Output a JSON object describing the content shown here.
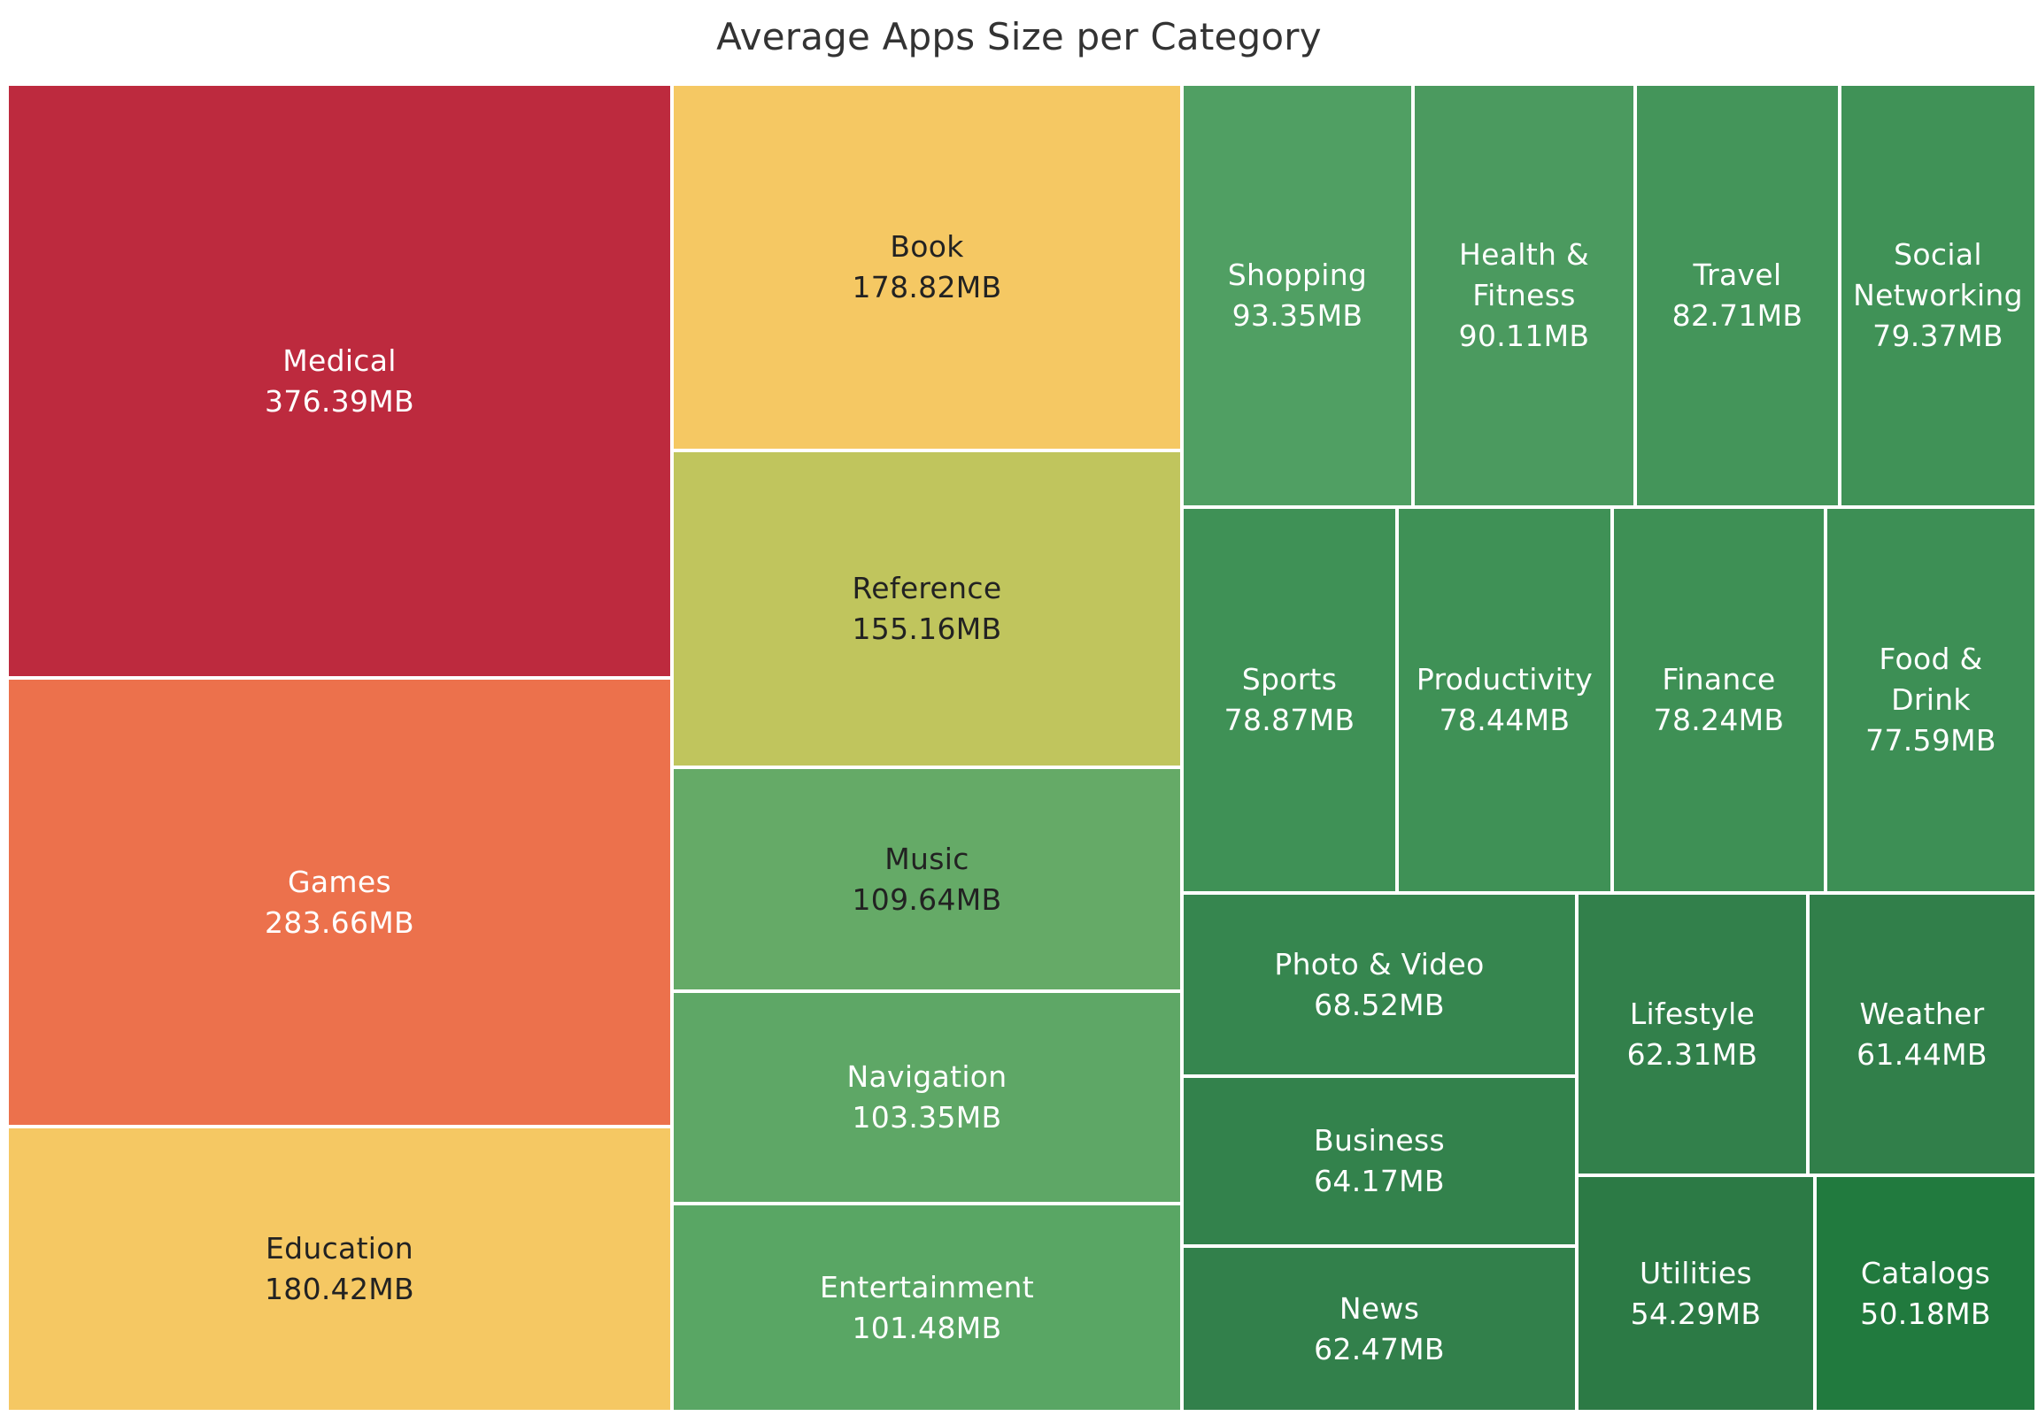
{
  "chart_data": {
    "type": "treemap",
    "title": "Average Apps Size per Category",
    "unit": "MB",
    "items": [
      {
        "name": "Medical",
        "value": 376.39,
        "value_label": "376.39MB",
        "color": "#bd2a3e",
        "text_color": "#ffffff"
      },
      {
        "name": "Games",
        "value": 283.66,
        "value_label": "283.66MB",
        "color": "#ec714c",
        "text_color": "#ffffff"
      },
      {
        "name": "Education",
        "value": 180.42,
        "value_label": "180.42MB",
        "color": "#f5c863",
        "text_color": "#222222"
      },
      {
        "name": "Book",
        "value": 178.82,
        "value_label": "178.82MB",
        "color": "#f5c863",
        "text_color": "#222222"
      },
      {
        "name": "Reference",
        "value": 155.16,
        "value_label": "155.16MB",
        "color": "#c0c55d",
        "text_color": "#222222"
      },
      {
        "name": "Music",
        "value": 109.64,
        "value_label": "109.64MB",
        "color": "#65aa67",
        "text_color": "#222222"
      },
      {
        "name": "Navigation",
        "value": 103.35,
        "value_label": "103.35MB",
        "color": "#5ea766",
        "text_color": "#ffffff"
      },
      {
        "name": "Entertainment",
        "value": 101.48,
        "value_label": "101.48MB",
        "color": "#59a664",
        "text_color": "#ffffff"
      },
      {
        "name": "Shopping",
        "value": 93.35,
        "value_label": "93.35MB",
        "color": "#509f63",
        "text_color": "#ffffff"
      },
      {
        "name": "Health & Fitness",
        "value": 90.11,
        "value_label": "90.11MB",
        "color": "#4b9a5f",
        "text_color": "#ffffff"
      },
      {
        "name": "Travel",
        "value": 82.71,
        "value_label": "82.71MB",
        "color": "#44955a",
        "text_color": "#ffffff"
      },
      {
        "name": "Social Networking",
        "value": 79.37,
        "value_label": "79.37MB",
        "color": "#409257",
        "text_color": "#ffffff"
      },
      {
        "name": "Sports",
        "value": 78.87,
        "value_label": "78.87MB",
        "color": "#3f9156",
        "text_color": "#ffffff"
      },
      {
        "name": "Productivity",
        "value": 78.44,
        "value_label": "78.44MB",
        "color": "#3f9156",
        "text_color": "#ffffff"
      },
      {
        "name": "Finance",
        "value": 78.24,
        "value_label": "78.24MB",
        "color": "#3e9055",
        "text_color": "#ffffff"
      },
      {
        "name": "Food & Drink",
        "value": 77.59,
        "value_label": "77.59MB",
        "color": "#3d8f55",
        "text_color": "#ffffff"
      },
      {
        "name": "Photo & Video",
        "value": 68.52,
        "value_label": "68.52MB",
        "color": "#36864f",
        "text_color": "#ffffff"
      },
      {
        "name": "Business",
        "value": 64.17,
        "value_label": "64.17MB",
        "color": "#33824c",
        "text_color": "#ffffff"
      },
      {
        "name": "News",
        "value": 62.47,
        "value_label": "62.47MB",
        "color": "#32804b",
        "text_color": "#ffffff"
      },
      {
        "name": "Lifestyle",
        "value": 62.31,
        "value_label": "62.31MB",
        "color": "#32804b",
        "text_color": "#ffffff"
      },
      {
        "name": "Weather",
        "value": 61.44,
        "value_label": "61.44MB",
        "color": "#317f4a",
        "text_color": "#ffffff"
      },
      {
        "name": "Utilities",
        "value": 54.29,
        "value_label": "54.29MB",
        "color": "#2c7a45",
        "text_color": "#ffffff"
      },
      {
        "name": "Catalogs",
        "value": 50.18,
        "value_label": "50.18MB",
        "color": "#217a3e",
        "text_color": "#ffffff"
      }
    ]
  }
}
